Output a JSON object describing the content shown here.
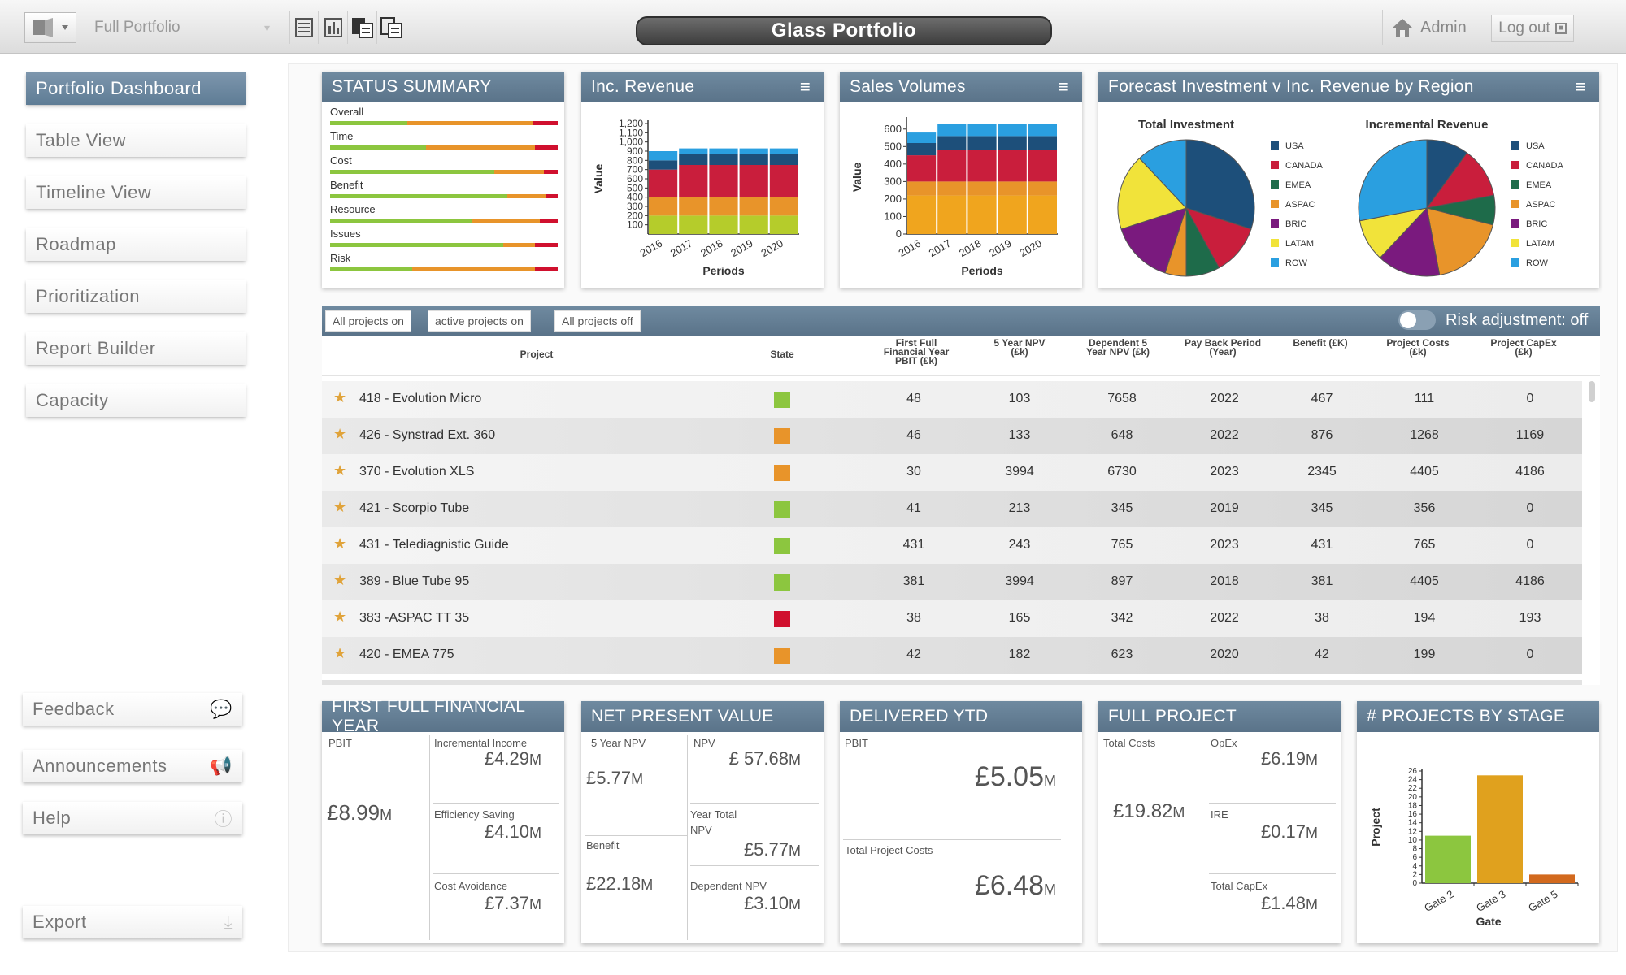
{
  "app": {
    "title": "Glass Portfolio",
    "portfolio_select": "Full Portfolio",
    "user": "Admin",
    "logout": "Log out"
  },
  "nav": {
    "items": [
      "Portfolio Dashboard",
      "Table View",
      "Timeline View",
      "Roadmap",
      "Prioritization",
      "Report Builder",
      "Capacity"
    ],
    "feedback": "Feedback",
    "announcements": "Announcements",
    "help": "Help",
    "export": "Export"
  },
  "status_summary": {
    "title": "STATUS SUMMARY",
    "rows": [
      {
        "label": "Overall",
        "green": 0.34,
        "orange": 0.55,
        "red": 0.11
      },
      {
        "label": "Time",
        "green": 0.42,
        "orange": 0.48,
        "red": 0.1
      },
      {
        "label": "Cost",
        "green": 0.72,
        "orange": 0.22,
        "red": 0.06
      },
      {
        "label": "Benefit",
        "green": 0.78,
        "orange": 0.17,
        "red": 0.05
      },
      {
        "label": "Resource",
        "green": 0.62,
        "orange": 0.3,
        "red": 0.08
      },
      {
        "label": "Issues",
        "green": 0.76,
        "orange": 0.14,
        "red": 0.1
      },
      {
        "label": "Risk",
        "green": 0.36,
        "orange": 0.54,
        "red": 0.1
      }
    ]
  },
  "inc_revenue": {
    "title": "Inc. Revenue",
    "chart_data": {
      "type": "bar",
      "stacked": true,
      "categories": [
        "2016",
        "2017",
        "2018",
        "2019",
        "2020"
      ],
      "series": [
        {
          "name": "ROW",
          "values": [
            100,
            60,
            60,
            60,
            60
          ],
          "color": "#2a9fe0"
        },
        {
          "name": "USA",
          "values": [
            100,
            120,
            120,
            120,
            120
          ],
          "color": "#1d4f7a"
        },
        {
          "name": "CANADA",
          "values": [
            300,
            350,
            350,
            350,
            350
          ],
          "color": "#c91e3c"
        },
        {
          "name": "BRIC",
          "values": [
            200,
            200,
            200,
            200,
            200
          ],
          "color": "#e8942a"
        },
        {
          "name": "LATAM",
          "values": [
            200,
            200,
            200,
            200,
            200
          ],
          "color": "#b5cc2b"
        }
      ],
      "ylim": [
        0,
        1200
      ],
      "yticks": [
        100,
        200,
        300,
        400,
        500,
        600,
        700,
        800,
        900,
        1000,
        1100,
        1200
      ],
      "ytick_labels": [
        "100",
        "200",
        "300",
        "400",
        "500",
        "600",
        "700",
        "800",
        "900",
        "1,000",
        "1,100",
        "1,200"
      ],
      "xlabel": "Periods",
      "ylabel": "Value"
    }
  },
  "sales_volumes": {
    "title": "Sales Volumes",
    "chart_data": {
      "type": "bar",
      "stacked": true,
      "categories": [
        "2016",
        "2017",
        "2018",
        "2019",
        "2020"
      ],
      "series": [
        {
          "name": "ROW",
          "values": [
            60,
            70,
            70,
            70,
            70
          ],
          "color": "#2a9fe0"
        },
        {
          "name": "USA",
          "values": [
            70,
            80,
            80,
            80,
            80
          ],
          "color": "#1d4f7a"
        },
        {
          "name": "CANADA",
          "values": [
            150,
            180,
            180,
            180,
            180
          ],
          "color": "#c91e3c"
        },
        {
          "name": "BRIC",
          "values": [
            80,
            80,
            80,
            80,
            80
          ],
          "color": "#e8942a"
        },
        {
          "name": "ASPAC",
          "values": [
            220,
            220,
            220,
            220,
            220
          ],
          "color": "#f0a51e"
        }
      ],
      "ylim": [
        0,
        650
      ],
      "yticks": [
        0,
        100,
        200,
        300,
        400,
        500,
        600
      ],
      "xlabel": "Periods",
      "ylabel": "Value"
    }
  },
  "forecast": {
    "title": "Forecast Investment v Inc. Revenue by Region",
    "chart_data": [
      {
        "type": "pie",
        "title": "Total Investment",
        "labels": [
          "USA",
          "CANADA",
          "EMEA",
          "ASPAC",
          "BRIC",
          "LATAM",
          "ROW"
        ],
        "values": [
          30,
          12,
          8,
          5,
          15,
          18,
          12
        ],
        "colors": [
          "#1d4f7a",
          "#c91e3c",
          "#1e6b4a",
          "#e8942a",
          "#7a1a7e",
          "#f1e33a",
          "#2a9fe0"
        ]
      },
      {
        "type": "pie",
        "title": "Incremental Revenue",
        "labels": [
          "USA",
          "CANADA",
          "EMEA",
          "ASPAC",
          "BRIC",
          "LATAM",
          "ROW"
        ],
        "values": [
          10,
          12,
          7,
          18,
          15,
          10,
          28
        ],
        "colors": [
          "#1d4f7a",
          "#c91e3c",
          "#1e6b4a",
          "#e8942a",
          "#7a1a7e",
          "#f1e33a",
          "#2a9fe0"
        ]
      }
    ]
  },
  "table": {
    "filters": [
      "All projects on",
      "active projects on",
      "All projects off"
    ],
    "risk_label": "Risk adjustment: off",
    "columns": {
      "project": "Project",
      "state": "State",
      "pbit": [
        "First Full",
        "Financial Year",
        "PBIT (£k)"
      ],
      "npv5": [
        "5 Year NPV",
        "(£k)"
      ],
      "dep_npv": [
        "Dependent 5",
        "Year NPV (£k)"
      ],
      "payback": [
        "Pay Back Period",
        "(Year)"
      ],
      "benefit": [
        "Benefit (£K)"
      ],
      "costs": [
        "Project Costs",
        "(£k)"
      ],
      "capex": [
        "Project CapEx",
        "(£k)"
      ]
    },
    "rows": [
      {
        "project": "418 - Evolution Micro",
        "state": "#8cc63f",
        "pbit": "48",
        "npv5": "103",
        "dep_npv": "7658",
        "payback": "2022",
        "benefit": "467",
        "costs": "111",
        "capex": "0"
      },
      {
        "project": "426 - Synstrad Ext. 360",
        "state": "#e8942a",
        "pbit": "46",
        "npv5": "133",
        "dep_npv": "648",
        "payback": "2022",
        "benefit": "876",
        "costs": "1268",
        "capex": "1169"
      },
      {
        "project": "370 - Evolution XLS",
        "state": "#e8942a",
        "pbit": "30",
        "npv5": "3994",
        "dep_npv": "6730",
        "payback": "2023",
        "benefit": "2345",
        "costs": "4405",
        "capex": "4186"
      },
      {
        "project": "421 - Scorpio Tube",
        "state": "#8cc63f",
        "pbit": "41",
        "npv5": "213",
        "dep_npv": "345",
        "payback": "2019",
        "benefit": "345",
        "costs": "356",
        "capex": "0"
      },
      {
        "project": "431 - Telediagnistic Guide",
        "state": "#8cc63f",
        "pbit": "431",
        "npv5": "243",
        "dep_npv": "765",
        "payback": "2023",
        "benefit": "431",
        "costs": "765",
        "capex": "0"
      },
      {
        "project": "389 - Blue Tube 95",
        "state": "#8cc63f",
        "pbit": "381",
        "npv5": "3994",
        "dep_npv": "897",
        "payback": "2018",
        "benefit": "381",
        "costs": "4405",
        "capex": "4186"
      },
      {
        "project": "383 -ASPAC TT 35",
        "state": "#d0102e",
        "pbit": "38",
        "npv5": "165",
        "dep_npv": "342",
        "payback": "2022",
        "benefit": "38",
        "costs": "194",
        "capex": "193"
      },
      {
        "project": "420 - EMEA 775",
        "state": "#e8942a",
        "pbit": "42",
        "npv5": "182",
        "dep_npv": "623",
        "payback": "2020",
        "benefit": "42",
        "costs": "199",
        "capex": "0"
      }
    ]
  },
  "kpi": {
    "ffy": {
      "title": "FIRST FULL FINANCIAL YEAR",
      "pbit_label": "PBIT",
      "pbit": "£8.99",
      "pbit_unit": "M",
      "inc_income_label": "Incremental Income",
      "inc_income": "£4.29",
      "inc_income_unit": "M",
      "eff_label": "Efficiency Saving",
      "eff": "£4.10",
      "eff_unit": "M",
      "cost_av_label": "Cost Avoidance",
      "cost_av": "£7.37",
      "cost_av_unit": "M"
    },
    "npv": {
      "title": "NET PRESENT VALUE",
      "npv5_label": "5 Year NPV",
      "npv5": "£5.77",
      "npv5_unit": "M",
      "npv_label": "NPV",
      "npv": "£ 57.68",
      "npv_unit": "M",
      "ytn_label1": "Year Total",
      "ytn_label2": "NPV",
      "ytn": "£5.77",
      "ytn_unit": "M",
      "benefit_label": "Benefit",
      "benefit": "£22.18",
      "benefit_unit": "M",
      "dep_label": "Dependent NPV",
      "dep": "£3.10",
      "dep_unit": "M"
    },
    "ytd": {
      "title": "DELIVERED YTD",
      "pbit_label": "PBIT",
      "pbit": "£5.05",
      "pbit_unit": "M",
      "tpc_label": "Total Project Costs",
      "tpc": "£6.48",
      "tpc_unit": "M"
    },
    "full": {
      "title": "FULL PROJECT",
      "tc_label": "Total Costs",
      "tc": "£19.82",
      "tc_unit": "M",
      "opex_label": "OpEx",
      "opex": "£6.19",
      "opex_unit": "M",
      "ire_label": "IRE",
      "ire": "£0.17",
      "ire_unit": "M",
      "capex_label": "Total CapEx",
      "capex": "£1.48",
      "capex_unit": "M"
    }
  },
  "stage": {
    "title": "# PROJECTS BY STAGE",
    "chart_data": {
      "type": "bar",
      "categories": [
        "Gate 2",
        "Gate 3",
        "Gate 5"
      ],
      "values": [
        11,
        25,
        2
      ],
      "colors": [
        "#8cc63f",
        "#e0a11e",
        "#d2691e"
      ],
      "ylim": [
        0,
        26
      ],
      "yticks": [
        0,
        2,
        4,
        6,
        8,
        10,
        12,
        14,
        16,
        18,
        20,
        22,
        24,
        26
      ],
      "xlabel": "Gate",
      "ylabel": "Project"
    }
  }
}
